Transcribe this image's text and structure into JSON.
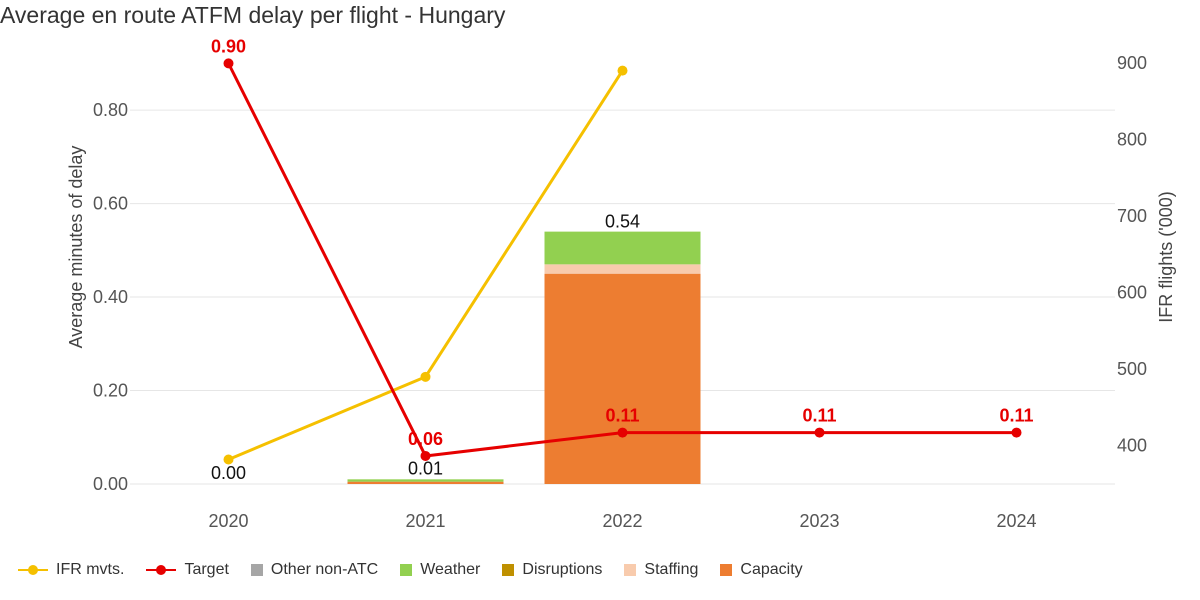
{
  "title": "Average en route ATFM delay per flight - Hungary",
  "chart_data": {
    "type": "bar",
    "categories": [
      "2020",
      "2021",
      "2022",
      "2023",
      "2024"
    ],
    "y_left": {
      "label": "Average minutes of delay",
      "min": 0,
      "max": 0.95,
      "ticks": [
        0.0,
        0.2,
        0.4,
        0.6,
        0.8
      ],
      "tick_labels": [
        "0.00",
        "0.20",
        "0.40",
        "0.60",
        "0.80"
      ]
    },
    "y_right": {
      "label": "IFR flights ('000)",
      "min": 350,
      "max": 930,
      "ticks": [
        400,
        500,
        600,
        700,
        800,
        900
      ],
      "tick_labels": [
        "400",
        "500",
        "600",
        "700",
        "800",
        "900"
      ]
    },
    "stacked_series": [
      {
        "name": "Other non-ATC",
        "color": "#a6a6a6",
        "values": [
          0,
          0,
          0,
          null,
          null
        ]
      },
      {
        "name": "Weather",
        "color": "#92d050",
        "values": [
          0,
          0.005,
          0.07,
          null,
          null
        ]
      },
      {
        "name": "Disruptions",
        "color": "#bf9000",
        "values": [
          0,
          0,
          0,
          null,
          null
        ]
      },
      {
        "name": "Staffing",
        "color": "#f8cbad",
        "values": [
          0,
          0,
          0.02,
          null,
          null
        ]
      },
      {
        "name": "Capacity",
        "color": "#ed7d31",
        "values": [
          0,
          0.005,
          0.45,
          null,
          null
        ]
      }
    ],
    "bar_totals": [
      0.0,
      0.01,
      0.54,
      null,
      null
    ],
    "bar_total_labels": [
      "0.00",
      "0.01",
      "0.54",
      "",
      ""
    ],
    "line_series": [
      {
        "name": "IFR mvts.",
        "axis": "right",
        "color": "#f5c000",
        "values": [
          382,
          490,
          890,
          null,
          null
        ]
      },
      {
        "name": "Target",
        "axis": "left",
        "color": "#e60000",
        "values": [
          0.9,
          0.06,
          0.11,
          0.11,
          0.11
        ],
        "labels": [
          "0.90",
          "0.06",
          "0.11",
          "0.11",
          "0.11"
        ]
      }
    ],
    "legend": {
      "position": "bottom-left",
      "items": [
        {
          "name": "IFR mvts.",
          "kind": "line",
          "color": "#f5c000"
        },
        {
          "name": "Target",
          "kind": "line",
          "color": "#e60000"
        },
        {
          "name": "Other non-ATC",
          "kind": "box",
          "color": "#a6a6a6"
        },
        {
          "name": "Weather",
          "kind": "box",
          "color": "#92d050"
        },
        {
          "name": "Disruptions",
          "kind": "box",
          "color": "#bf9000"
        },
        {
          "name": "Staffing",
          "kind": "box",
          "color": "#f8cbad"
        },
        {
          "name": "Capacity",
          "kind": "box",
          "color": "#ed7d31"
        }
      ]
    },
    "grid": true
  }
}
